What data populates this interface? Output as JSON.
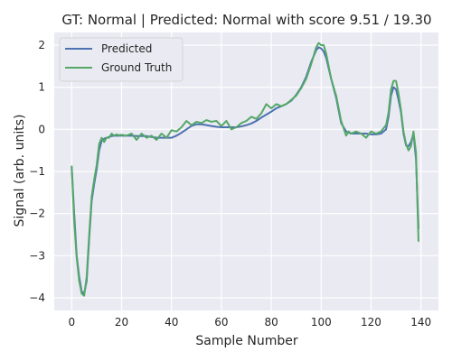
{
  "chart_data": {
    "type": "line",
    "title": "GT: Normal | Predicted: Normal with score 9.51 / 19.30",
    "xlabel": "Sample Number",
    "ylabel": "Signal (arb. units)",
    "xlim": [
      -7,
      147
    ],
    "ylim": [
      -4.3,
      2.3
    ],
    "xticks": [
      0,
      20,
      40,
      60,
      80,
      100,
      120,
      140
    ],
    "yticks": [
      -4,
      -3,
      -2,
      -1,
      0,
      1,
      2
    ],
    "grid": true,
    "legend_position": "top-left",
    "series": [
      {
        "name": "Predicted",
        "color": "#4c72b0",
        "x": [
          0,
          1,
          2,
          3,
          4,
          5,
          6,
          7,
          8,
          9,
          10,
          11,
          12,
          13,
          14,
          15,
          16,
          17,
          18,
          19,
          20,
          22,
          24,
          26,
          28,
          30,
          32,
          34,
          36,
          38,
          40,
          42,
          44,
          46,
          48,
          50,
          52,
          54,
          56,
          58,
          60,
          62,
          64,
          66,
          68,
          70,
          72,
          74,
          76,
          78,
          80,
          82,
          84,
          86,
          88,
          90,
          92,
          94,
          96,
          98,
          99,
          100,
          101,
          102,
          104,
          106,
          108,
          110,
          111,
          112,
          114,
          116,
          118,
          120,
          122,
          124,
          126,
          127,
          128,
          129,
          130,
          131,
          132,
          133,
          134,
          135,
          136,
          137,
          138,
          139
        ],
        "y": [
          -0.9,
          -2.0,
          -3.0,
          -3.5,
          -3.85,
          -3.9,
          -3.6,
          -2.6,
          -1.7,
          -1.3,
          -0.95,
          -0.5,
          -0.27,
          -0.22,
          -0.2,
          -0.18,
          -0.16,
          -0.15,
          -0.15,
          -0.15,
          -0.15,
          -0.15,
          -0.15,
          -0.16,
          -0.16,
          -0.16,
          -0.18,
          -0.2,
          -0.2,
          -0.2,
          -0.2,
          -0.15,
          -0.08,
          0.0,
          0.08,
          0.12,
          0.12,
          0.1,
          0.08,
          0.06,
          0.05,
          0.05,
          0.05,
          0.05,
          0.07,
          0.1,
          0.14,
          0.2,
          0.28,
          0.35,
          0.42,
          0.5,
          0.55,
          0.6,
          0.68,
          0.82,
          1.0,
          1.25,
          1.6,
          1.88,
          1.95,
          1.92,
          1.85,
          1.7,
          1.2,
          0.75,
          0.15,
          -0.05,
          -0.08,
          -0.1,
          -0.1,
          -0.1,
          -0.1,
          -0.12,
          -0.12,
          -0.1,
          0.0,
          0.3,
          0.8,
          1.0,
          0.95,
          0.7,
          0.4,
          -0.1,
          -0.38,
          -0.4,
          -0.3,
          -0.1,
          -0.7,
          -2.35
        ]
      },
      {
        "name": "Ground Truth",
        "color": "#55a868",
        "x": [
          0,
          1,
          2,
          3,
          4,
          5,
          6,
          7,
          8,
          9,
          10,
          11,
          12,
          13,
          14,
          15,
          16,
          17,
          18,
          19,
          20,
          22,
          24,
          26,
          28,
          30,
          32,
          34,
          36,
          38,
          40,
          42,
          44,
          46,
          48,
          50,
          52,
          54,
          56,
          58,
          60,
          62,
          64,
          66,
          68,
          70,
          72,
          74,
          76,
          78,
          80,
          82,
          84,
          86,
          88,
          90,
          92,
          94,
          96,
          98,
          99,
          100,
          101,
          102,
          104,
          106,
          108,
          110,
          111,
          112,
          114,
          116,
          118,
          120,
          122,
          124,
          126,
          127,
          128,
          129,
          130,
          131,
          132,
          133,
          134,
          135,
          136,
          137,
          138,
          139
        ],
        "y": [
          -0.88,
          -2.2,
          -3.05,
          -3.6,
          -3.9,
          -3.95,
          -3.5,
          -2.5,
          -1.6,
          -1.2,
          -0.85,
          -0.35,
          -0.2,
          -0.3,
          -0.2,
          -0.2,
          -0.1,
          -0.15,
          -0.12,
          -0.14,
          -0.13,
          -0.15,
          -0.1,
          -0.25,
          -0.1,
          -0.2,
          -0.15,
          -0.25,
          -0.1,
          -0.2,
          -0.02,
          -0.05,
          0.05,
          0.2,
          0.1,
          0.18,
          0.15,
          0.22,
          0.18,
          0.2,
          0.08,
          0.2,
          0.0,
          0.05,
          0.15,
          0.2,
          0.3,
          0.25,
          0.38,
          0.6,
          0.5,
          0.6,
          0.55,
          0.6,
          0.7,
          0.8,
          0.98,
          1.2,
          1.55,
          1.95,
          2.05,
          2.0,
          2.0,
          1.8,
          1.2,
          0.8,
          0.2,
          -0.15,
          -0.05,
          -0.1,
          -0.05,
          -0.1,
          -0.2,
          -0.05,
          -0.1,
          -0.05,
          0.1,
          0.4,
          0.95,
          1.15,
          1.15,
          0.85,
          0.45,
          -0.05,
          -0.35,
          -0.5,
          -0.4,
          -0.05,
          -0.55,
          -2.65
        ]
      }
    ]
  }
}
